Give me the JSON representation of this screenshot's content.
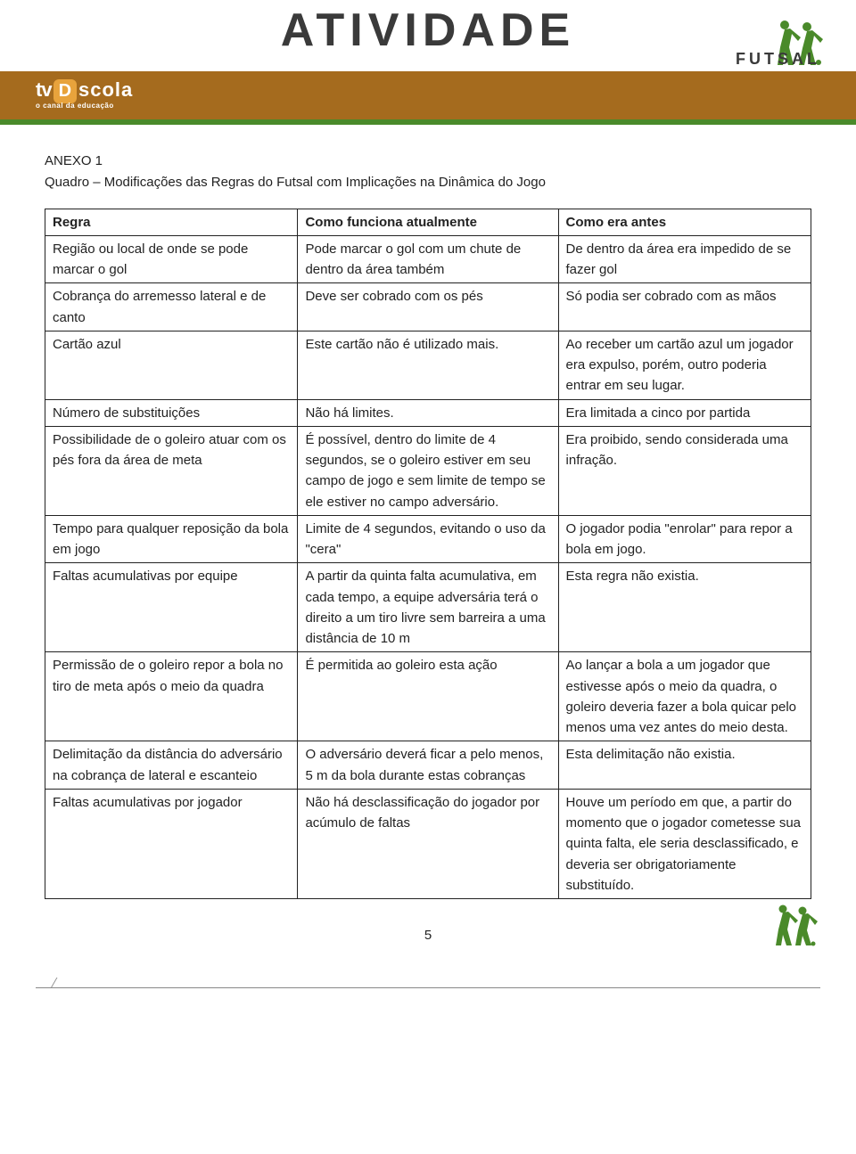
{
  "header": {
    "title": "ATIVIDADE",
    "futsal": "FUTSAL",
    "logo_tv": "tv",
    "logo_d": "D",
    "logo_scola": "scola",
    "logo_sub": "o canal da educação"
  },
  "anexo": {
    "title": "ANEXO 1",
    "subtitle": "Quadro – Modificações das Regras do Futsal com Implicações na Dinâmica do Jogo"
  },
  "table": {
    "headers": [
      "Regra",
      "Como funciona atualmente",
      "Como era antes"
    ],
    "rows": [
      {
        "c1": "Região ou local de onde se pode marcar o gol",
        "c2": "Pode marcar o gol com um chute de dentro da área também",
        "c3": "De dentro da área era impedido de se fazer gol"
      },
      {
        "c1": "Cobrança do arremesso lateral e de canto",
        "c2": "Deve ser cobrado com os pés",
        "c3": "Só podia ser cobrado com as mãos"
      },
      {
        "c1": "Cartão azul",
        "c2": "Este cartão não é utilizado mais.",
        "c3": "Ao receber um cartão azul um jogador era expulso, porém, outro poderia entrar em seu lugar."
      },
      {
        "c1": "Número de substituições",
        "c2": "Não há limites.",
        "c3": "Era limitada a cinco por partida"
      },
      {
        "c1": "Possibilidade de o goleiro atuar com os pés fora da área de meta",
        "c2": "É possível, dentro do limite de 4 segundos, se o goleiro estiver em seu campo de jogo e sem limite de tempo se ele estiver no campo adversário.",
        "c3": "Era proibido, sendo considerada uma infração."
      },
      {
        "c1": "Tempo para qualquer reposição da bola em jogo",
        "c2": "Limite de 4 segundos, evitando o uso da \"cera\"",
        "c3": "O jogador podia \"enrolar\" para repor a bola em jogo."
      },
      {
        "c1": "Faltas acumulativas por equipe",
        "c2": "A partir da quinta falta acumulativa, em cada tempo, a equipe adversária terá o direito a um tiro livre sem barreira a uma distância de 10 m",
        "c3": "Esta regra não existia."
      },
      {
        "c1": "Permissão de o goleiro repor a bola no tiro de meta após o meio da quadra",
        "c2": "É permitida ao goleiro esta ação",
        "c3": "Ao lançar a bola a um jogador que estivesse após o meio da quadra, o goleiro deveria fazer a bola quicar pelo menos uma vez antes do meio desta."
      },
      {
        "c1": "Delimitação da distância do adversário na cobrança de lateral e escanteio",
        "c2": "O adversário deverá ficar a pelo menos, 5 m da bola durante estas cobranças",
        "c3": "Esta delimitação não existia."
      },
      {
        "c1": "Faltas acumulativas por jogador",
        "c2": "Não há desclassificação do jogador por acúmulo de faltas",
        "c3": "Houve um período em que, a partir do momento que o jogador cometesse sua quinta falta, ele seria desclassificado, e deveria ser obrigatoriamente substituído."
      }
    ]
  },
  "page_number": "5",
  "colors": {
    "brown": "#a56b1e",
    "green": "#4a8a2a",
    "orange": "#e8a33c",
    "text": "#222222"
  }
}
